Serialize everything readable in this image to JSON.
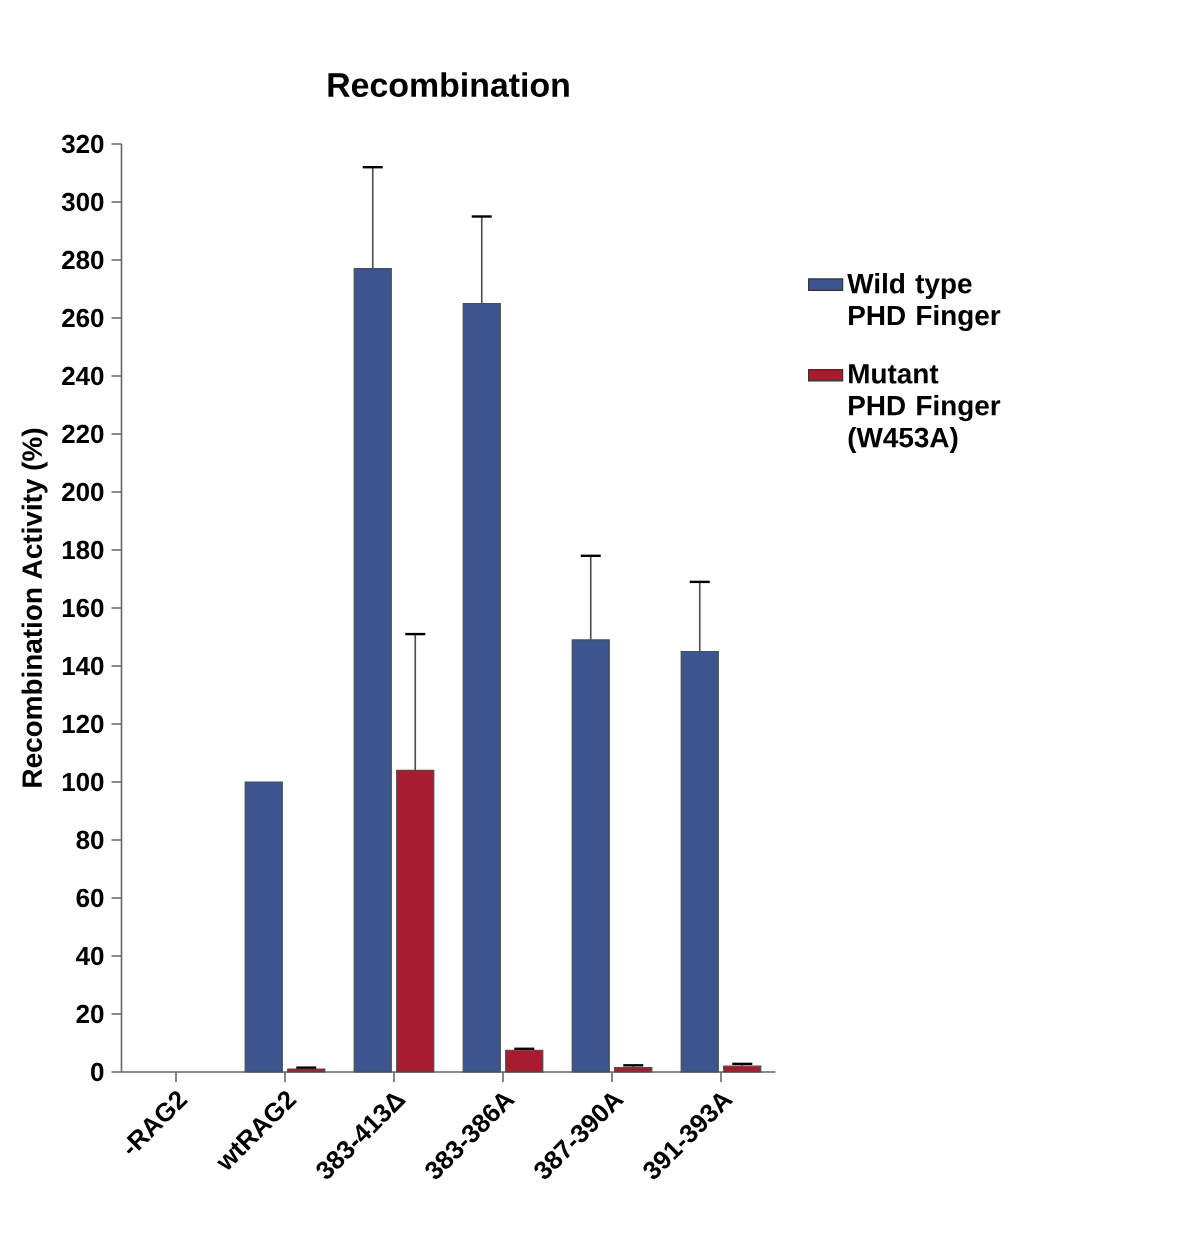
{
  "chart_data": {
    "type": "bar",
    "title": "Recombination",
    "ylabel": "Recombination Activity (%)",
    "categories": [
      "-RAG2",
      "wtRAG2",
      "383-413Δ",
      "383-386A",
      "387-390A",
      "391-393A"
    ],
    "series": [
      {
        "name": "Wild type PHD Finger",
        "color": "#3d558e",
        "values": [
          null,
          100,
          277,
          265,
          149,
          145
        ],
        "errors": [
          null,
          null,
          35,
          30,
          29,
          24
        ]
      },
      {
        "name": "Mutant PHD Finger (W453A)",
        "color": "#a81c2f",
        "values": [
          null,
          1,
          104,
          7.5,
          1.5,
          2
        ],
        "errors": [
          null,
          0.5,
          47,
          0.5,
          0.8,
          0.8
        ]
      }
    ],
    "ylim": [
      0,
      320
    ],
    "yticks": [
      0,
      20,
      40,
      60,
      80,
      100,
      120,
      140,
      160,
      180,
      200,
      220,
      240,
      260,
      280,
      300,
      320
    ],
    "legend": "right",
    "grid": false
  }
}
